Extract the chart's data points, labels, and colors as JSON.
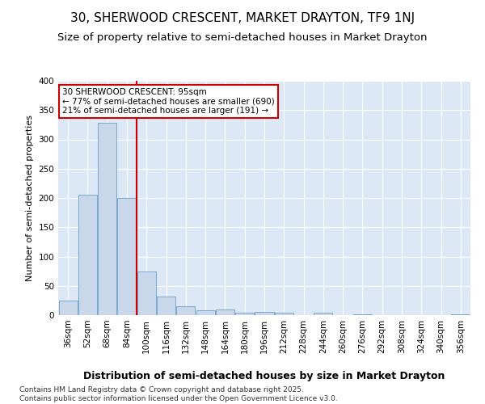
{
  "title1": "30, SHERWOOD CRESCENT, MARKET DRAYTON, TF9 1NJ",
  "title2": "Size of property relative to semi-detached houses in Market Drayton",
  "xlabel": "Distribution of semi-detached houses by size in Market Drayton",
  "ylabel": "Number of semi-detached properties",
  "categories": [
    "36sqm",
    "52sqm",
    "68sqm",
    "84sqm",
    "100sqm",
    "116sqm",
    "132sqm",
    "148sqm",
    "164sqm",
    "180sqm",
    "196sqm",
    "212sqm",
    "228sqm",
    "244sqm",
    "260sqm",
    "276sqm",
    "292sqm",
    "308sqm",
    "324sqm",
    "340sqm",
    "356sqm"
  ],
  "values": [
    25,
    205,
    328,
    200,
    75,
    32,
    15,
    8,
    9,
    4,
    5,
    4,
    0,
    4,
    0,
    1,
    0,
    0,
    0,
    0,
    2
  ],
  "bar_color": "#c8d8ea",
  "bar_edge_color": "#7aa8cc",
  "figure_bg_color": "#ffffff",
  "plot_bg_color": "#dce8f5",
  "grid_color": "#ffffff",
  "vline_x": 3.5,
  "vline_color": "#cc0000",
  "annotation_line1": "30 SHERWOOD CRESCENT: 95sqm",
  "annotation_line2": "← 77% of semi-detached houses are smaller (690)",
  "annotation_line3": "21% of semi-detached houses are larger (191) →",
  "annotation_box_color": "#cc0000",
  "footer": "Contains HM Land Registry data © Crown copyright and database right 2025.\nContains public sector information licensed under the Open Government Licence v3.0.",
  "ylim": [
    0,
    400
  ],
  "yticks": [
    0,
    50,
    100,
    150,
    200,
    250,
    300,
    350,
    400
  ],
  "title1_fontsize": 11,
  "title2_fontsize": 9.5,
  "xlabel_fontsize": 9,
  "ylabel_fontsize": 8,
  "tick_fontsize": 7.5,
  "annotation_fontsize": 7.5,
  "footer_fontsize": 6.5
}
